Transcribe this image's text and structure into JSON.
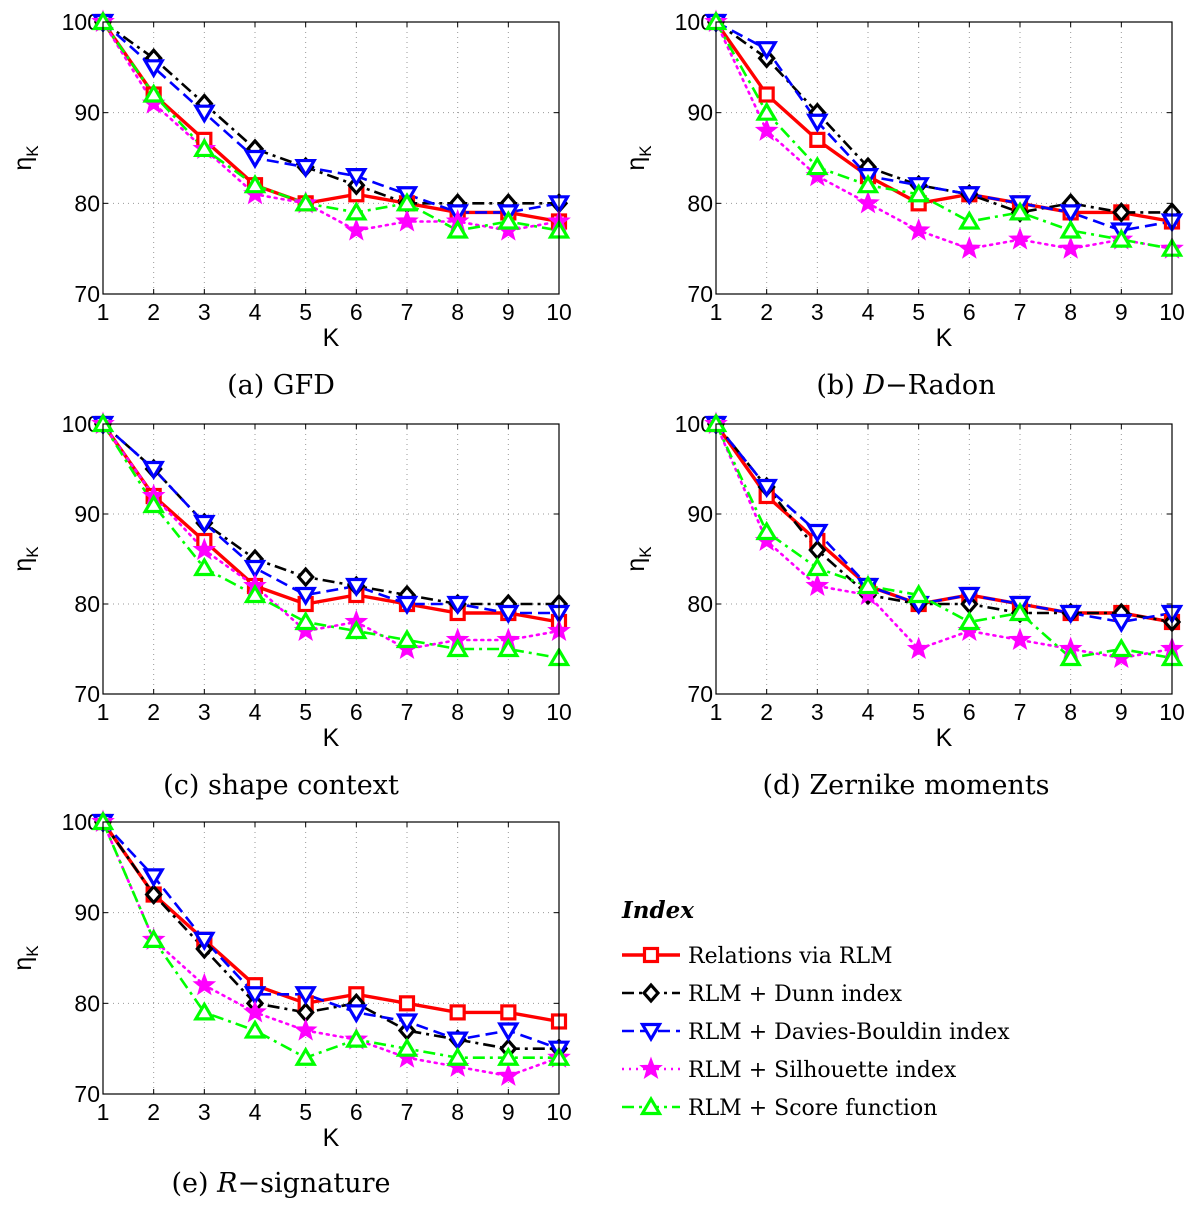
{
  "chart_data": [
    {
      "type": "line",
      "caption": "(a) GFD",
      "xlabel": "K",
      "ylabel": "η_K",
      "xlim": [
        1,
        10
      ],
      "ylim": [
        70,
        100
      ],
      "xticks": [
        "1",
        "2",
        "3",
        "4",
        "5",
        "6",
        "7",
        "8",
        "9",
        "10"
      ],
      "yticks": [
        "70",
        "80",
        "90",
        "100"
      ],
      "grid": true,
      "x": [
        1,
        2,
        3,
        4,
        5,
        6,
        7,
        8,
        9,
        10
      ],
      "series": [
        {
          "name": "Relations via RLM",
          "values": [
            100,
            92,
            87,
            82,
            80,
            81,
            80,
            79,
            79,
            78
          ]
        },
        {
          "name": "RLM + Dunn index",
          "values": [
            100,
            96,
            91,
            86,
            84,
            82,
            80,
            80,
            80,
            80
          ]
        },
        {
          "name": "RLM + Davies-Bouldin index",
          "values": [
            100,
            95,
            90,
            85,
            84,
            83,
            81,
            79,
            79,
            80
          ]
        },
        {
          "name": "RLM + Silhouette index",
          "values": [
            100,
            91,
            86,
            81,
            80,
            77,
            78,
            78,
            77,
            78
          ]
        },
        {
          "name": "RLM + Score function",
          "values": [
            100,
            92,
            86,
            82,
            80,
            79,
            80,
            77,
            78,
            77
          ]
        }
      ]
    },
    {
      "type": "line",
      "caption_prefix": "(b) ",
      "caption_math": "D",
      "caption_suffix": "−Radon",
      "xlabel": "K",
      "ylabel": "η_K",
      "xlim": [
        1,
        10
      ],
      "ylim": [
        70,
        100
      ],
      "xticks": [
        "1",
        "2",
        "3",
        "4",
        "5",
        "6",
        "7",
        "8",
        "9",
        "10"
      ],
      "yticks": [
        "70",
        "80",
        "90",
        "100"
      ],
      "grid": true,
      "x": [
        1,
        2,
        3,
        4,
        5,
        6,
        7,
        8,
        9,
        10
      ],
      "series": [
        {
          "name": "Relations via RLM",
          "values": [
            100,
            92,
            87,
            83,
            80,
            81,
            80,
            79,
            79,
            78
          ]
        },
        {
          "name": "RLM + Dunn index",
          "values": [
            100,
            96,
            90,
            84,
            82,
            81,
            79,
            80,
            79,
            79
          ]
        },
        {
          "name": "RLM + Davies-Bouldin index",
          "values": [
            100,
            97,
            89,
            83,
            82,
            81,
            80,
            79,
            77,
            78
          ]
        },
        {
          "name": "RLM + Silhouette index",
          "values": [
            100,
            88,
            83,
            80,
            77,
            75,
            76,
            75,
            76,
            75
          ]
        },
        {
          "name": "RLM + Score function",
          "values": [
            100,
            90,
            84,
            82,
            81,
            78,
            79,
            77,
            76,
            75
          ]
        }
      ]
    },
    {
      "type": "line",
      "caption": "(c) shape context",
      "xlabel": "K",
      "ylabel": "η_K",
      "xlim": [
        1,
        10
      ],
      "ylim": [
        70,
        100
      ],
      "xticks": [
        "1",
        "2",
        "3",
        "4",
        "5",
        "6",
        "7",
        "8",
        "9",
        "10"
      ],
      "yticks": [
        "70",
        "80",
        "90",
        "100"
      ],
      "grid": true,
      "x": [
        1,
        2,
        3,
        4,
        5,
        6,
        7,
        8,
        9,
        10
      ],
      "series": [
        {
          "name": "Relations via RLM",
          "values": [
            100,
            92,
            87,
            82,
            80,
            81,
            80,
            79,
            79,
            78
          ]
        },
        {
          "name": "RLM + Dunn index",
          "values": [
            100,
            95,
            89,
            85,
            83,
            82,
            81,
            80,
            80,
            80
          ]
        },
        {
          "name": "RLM + Davies-Bouldin index",
          "values": [
            100,
            95,
            89,
            84,
            81,
            82,
            80,
            80,
            79,
            79
          ]
        },
        {
          "name": "RLM + Silhouette index",
          "values": [
            100,
            92,
            86,
            82,
            77,
            78,
            75,
            76,
            76,
            77
          ]
        },
        {
          "name": "RLM + Score function",
          "values": [
            100,
            91,
            84,
            81,
            78,
            77,
            76,
            75,
            75,
            74
          ]
        }
      ]
    },
    {
      "type": "line",
      "caption": "(d) Zernike moments",
      "xlabel": "K",
      "ylabel": "η_K",
      "xlim": [
        1,
        10
      ],
      "ylim": [
        70,
        100
      ],
      "xticks": [
        "1",
        "2",
        "3",
        "4",
        "5",
        "6",
        "7",
        "8",
        "9",
        "10"
      ],
      "yticks": [
        "70",
        "80",
        "90",
        "100"
      ],
      "grid": true,
      "x": [
        1,
        2,
        3,
        4,
        5,
        6,
        7,
        8,
        9,
        10
      ],
      "series": [
        {
          "name": "Relations via RLM",
          "values": [
            100,
            92,
            87,
            82,
            80,
            81,
            80,
            79,
            79,
            78
          ]
        },
        {
          "name": "RLM + Dunn index",
          "values": [
            100,
            93,
            86,
            81,
            80,
            80,
            79,
            79,
            79,
            78
          ]
        },
        {
          "name": "RLM + Davies-Bouldin index",
          "values": [
            100,
            93,
            88,
            82,
            80,
            81,
            80,
            79,
            78,
            79
          ]
        },
        {
          "name": "RLM + Silhouette index",
          "values": [
            100,
            87,
            82,
            81,
            75,
            77,
            76,
            75,
            74,
            75
          ]
        },
        {
          "name": "RLM + Score function",
          "values": [
            100,
            88,
            84,
            82,
            81,
            78,
            79,
            74,
            75,
            74
          ]
        }
      ]
    },
    {
      "type": "line",
      "caption_prefix": "(e) ",
      "caption_math": "R",
      "caption_suffix": "−signature",
      "xlabel": "K",
      "ylabel": "η_K",
      "xlim": [
        1,
        10
      ],
      "ylim": [
        70,
        100
      ],
      "xticks": [
        "1",
        "2",
        "3",
        "4",
        "5",
        "6",
        "7",
        "8",
        "9",
        "10"
      ],
      "yticks": [
        "70",
        "80",
        "90",
        "100"
      ],
      "grid": true,
      "x": [
        1,
        2,
        3,
        4,
        5,
        6,
        7,
        8,
        9,
        10
      ],
      "series": [
        {
          "name": "Relations via RLM",
          "values": [
            100,
            92,
            87,
            82,
            80,
            81,
            80,
            79,
            79,
            78
          ]
        },
        {
          "name": "RLM + Dunn index",
          "values": [
            100,
            92,
            86,
            80,
            79,
            80,
            77,
            76,
            75,
            75
          ]
        },
        {
          "name": "RLM + Davies-Bouldin index",
          "values": [
            100,
            94,
            87,
            81,
            81,
            79,
            78,
            76,
            77,
            75
          ]
        },
        {
          "name": "RLM + Silhouette index",
          "values": [
            100,
            87,
            82,
            79,
            77,
            76,
            74,
            73,
            72,
            74
          ]
        },
        {
          "name": "RLM + Score function",
          "values": [
            100,
            87,
            79,
            77,
            74,
            76,
            75,
            74,
            74,
            74
          ]
        }
      ]
    }
  ],
  "legend": {
    "title": "Index",
    "placement": "bottom-right",
    "entries": [
      "Relations via RLM",
      "RLM + Dunn index",
      "RLM + Davies-Bouldin index",
      "RLM + Silhouette index",
      "RLM + Score function"
    ]
  },
  "series_styles": [
    {
      "color": "#ff0000",
      "marker": "square",
      "dash": "solid"
    },
    {
      "color": "#000000",
      "marker": "diamond",
      "dash": "dashdot"
    },
    {
      "color": "#0000ff",
      "marker": "triangle-down",
      "dash": "dashed"
    },
    {
      "color": "#ff00ff",
      "marker": "star",
      "dash": "dotted"
    },
    {
      "color": "#00ff00",
      "marker": "triangle-up",
      "dash": "dashdot"
    }
  ]
}
